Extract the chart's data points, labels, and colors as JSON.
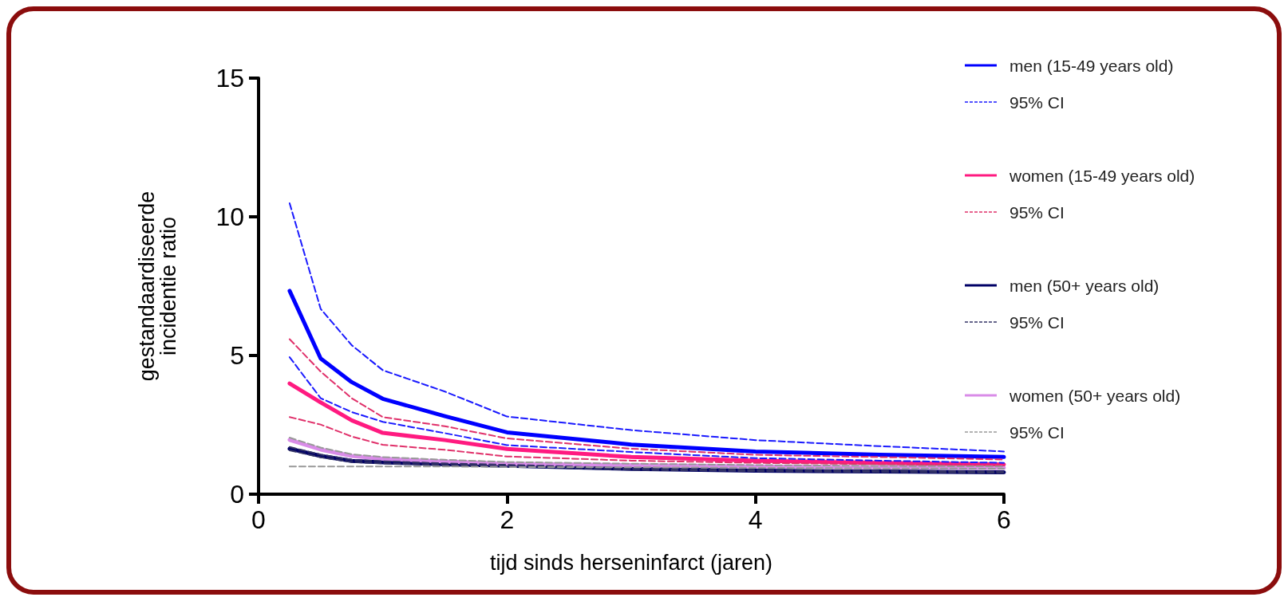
{
  "chart_data": {
    "type": "line",
    "xlabel": "tijd sinds herseninfarct (jaren)",
    "ylabel": "gestandaardiseerde\nincidentie ratio",
    "x": [
      0.25,
      0.5,
      0.75,
      1,
      1.5,
      2,
      3,
      4,
      5,
      6
    ],
    "xlim": [
      0,
      6
    ],
    "xticks": [
      0,
      2,
      4,
      6
    ],
    "ylim": [
      0,
      15
    ],
    "yticks": [
      0,
      5,
      10,
      15
    ],
    "grid": false,
    "legend": "right",
    "marker": "none",
    "series": [
      {
        "name": "men (15-49 years old)",
        "color": "#0000ff",
        "line_style": "solid",
        "values": [
          7.33,
          4.89,
          4.04,
          3.44,
          2.81,
          2.23,
          1.79,
          1.54,
          1.42,
          1.34
        ]
      },
      {
        "name": "95% CI",
        "color": "#1a1aff",
        "line_style": "dashed",
        "values": [
          10.49,
          6.68,
          5.37,
          4.47,
          3.7,
          2.8,
          2.31,
          1.95,
          1.73,
          1.54
        ]
      },
      {
        "color": "#1a1aff",
        "line_style": "dashed",
        "values": [
          4.94,
          3.46,
          2.96,
          2.61,
          2.2,
          1.77,
          1.52,
          1.3,
          1.21,
          1.13
        ]
      },
      {
        "name": "women (15-49 years old)",
        "color": "#ff1a80",
        "line_style": "solid",
        "values": [
          3.99,
          3.31,
          2.66,
          2.21,
          1.95,
          1.63,
          1.34,
          1.21,
          1.13,
          1.07
        ]
      },
      {
        "name": "95% CI",
        "color": "#e0306a",
        "line_style": "dashed",
        "values": [
          5.59,
          4.42,
          3.46,
          2.78,
          2.45,
          2.01,
          1.64,
          1.42,
          1.34,
          1.25
        ]
      },
      {
        "color": "#e0306a",
        "line_style": "dashed",
        "values": [
          2.78,
          2.51,
          2.08,
          1.78,
          1.6,
          1.36,
          1.21,
          1.13,
          1.08,
          1.04
        ]
      },
      {
        "name": "men (50+ years old)",
        "color": "#000066",
        "line_style": "solid",
        "values": [
          1.64,
          1.38,
          1.2,
          1.15,
          1.08,
          1.03,
          0.91,
          0.85,
          0.82,
          0.79
        ]
      },
      {
        "name": "95% CI",
        "color": "#333366",
        "line_style": "dashed",
        "values": [
          1.7,
          1.43,
          1.24,
          1.19,
          1.11,
          1.06,
          0.94,
          0.88,
          0.85,
          0.82
        ]
      },
      {
        "color": "#333366",
        "line_style": "dashed",
        "values": [
          1.58,
          1.33,
          1.16,
          1.11,
          1.05,
          1.0,
          0.88,
          0.83,
          0.8,
          0.77
        ]
      },
      {
        "name": "women (50+ years old)",
        "color": "#d98ce8",
        "line_style": "solid",
        "values": [
          1.96,
          1.61,
          1.38,
          1.28,
          1.18,
          1.1,
          1.05,
          1.0,
          0.97,
          0.95
        ]
      },
      {
        "name": "95% CI",
        "color": "#999999",
        "line_style": "dashed",
        "values": [
          2.04,
          1.68,
          1.44,
          1.34,
          1.24,
          1.16,
          1.1,
          1.05,
          1.02,
          1.0
        ]
      },
      {
        "color": "#999999",
        "line_style": "dashed",
        "values": [
          1.0,
          1.0,
          1.0,
          1.0,
          1.0,
          0.98,
          0.97,
          0.95,
          0.93,
          0.92
        ]
      }
    ]
  }
}
